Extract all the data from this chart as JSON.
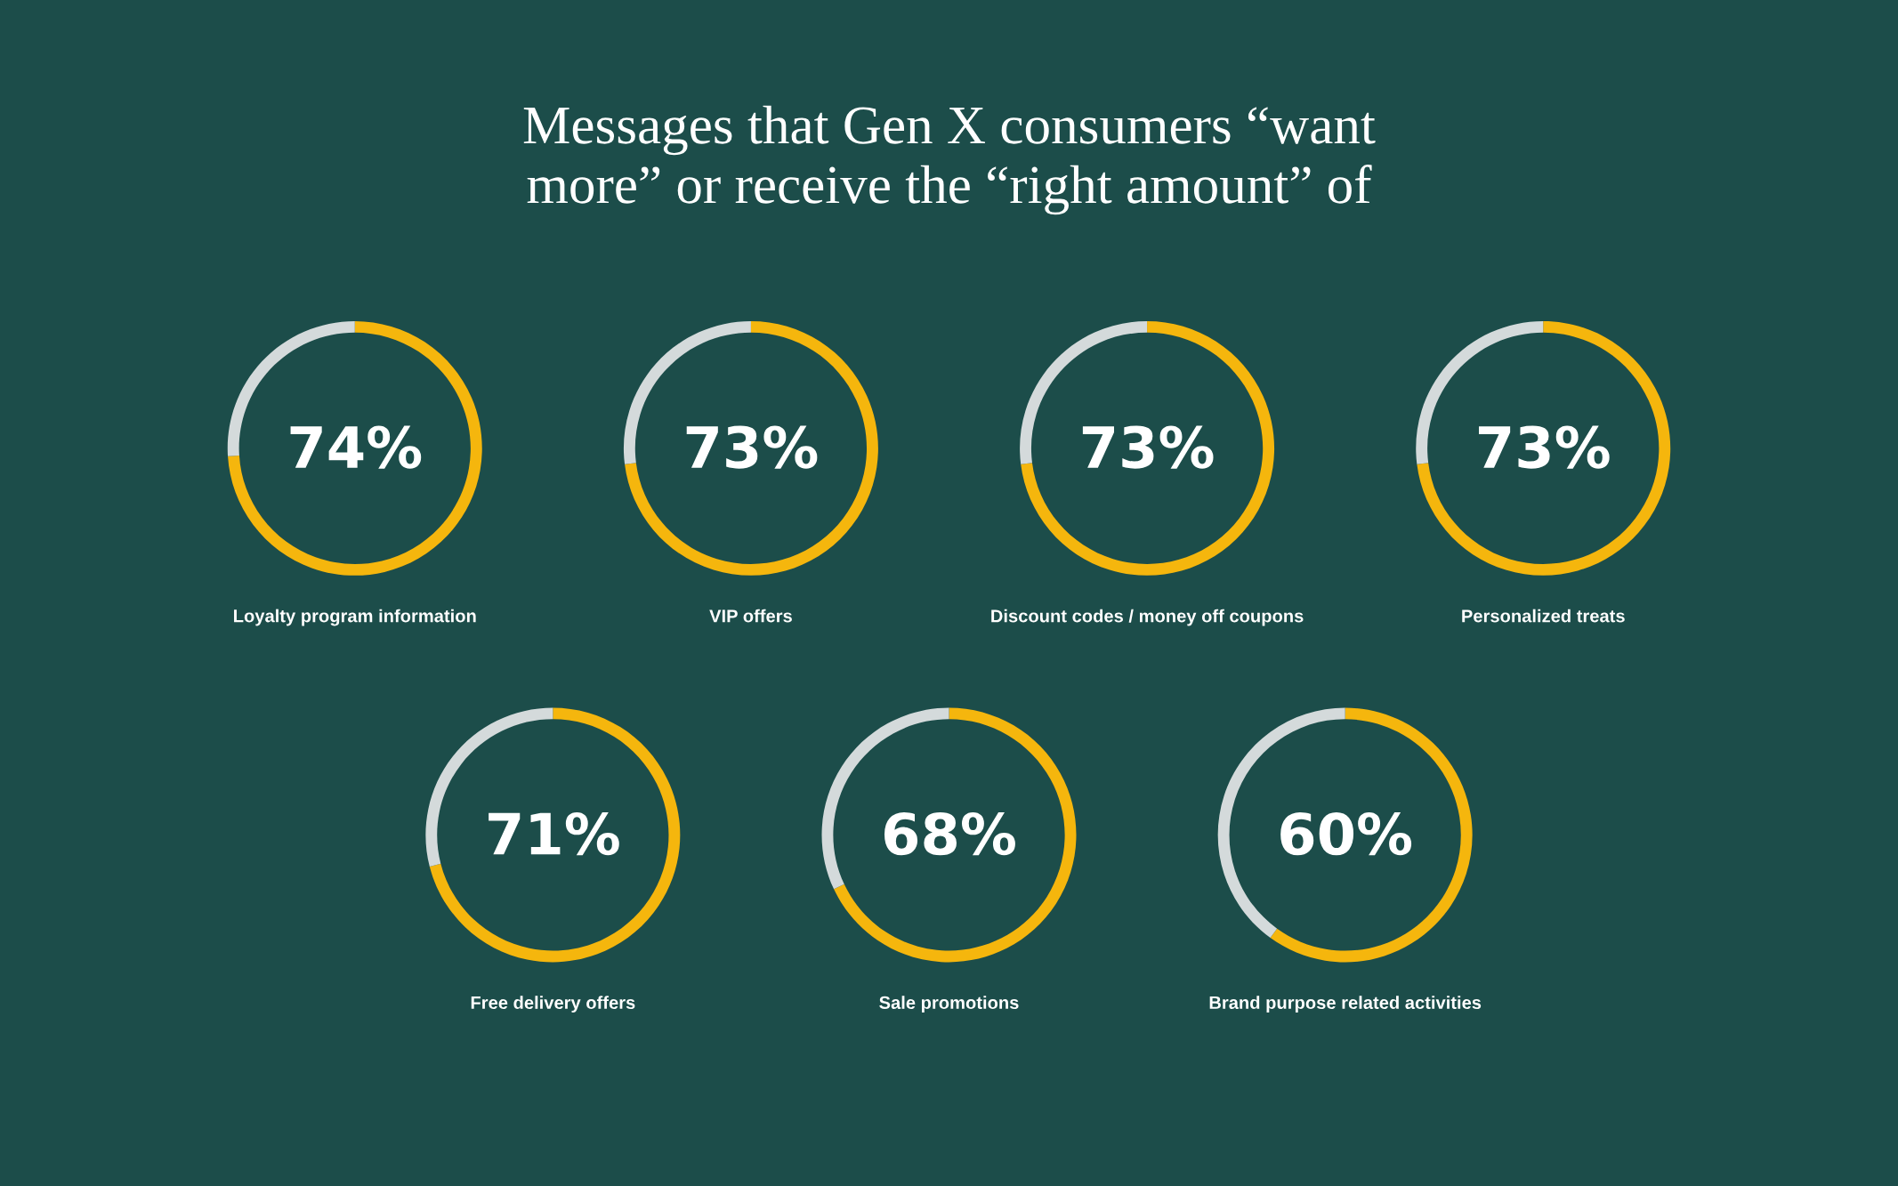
{
  "chart_data": [
    {
      "type": "other",
      "title": "Messages that Gen X consumers “want more” or receive the “right amount” of"
    },
    {
      "type": "donut",
      "xlabel": "Loyalty program information",
      "categories": [
        null,
        null
      ],
      "values": [
        74,
        26
      ],
      "colors": [
        "#f5b60d",
        "#d4dadb"
      ],
      "value_labels": [
        "74%",
        null
      ]
    },
    {
      "type": "donut",
      "xlabel": "VIP offers",
      "categories": [
        null,
        null
      ],
      "values": [
        73,
        27
      ],
      "colors": [
        "#f5b60d",
        "#d4dadb"
      ],
      "value_labels": [
        "73%",
        null
      ]
    },
    {
      "type": "donut",
      "xlabel": "Discount codes / money off coupons",
      "categories": [
        null,
        null
      ],
      "values": [
        73,
        27
      ],
      "colors": [
        "#f5b60d",
        "#d4dadb"
      ],
      "value_labels": [
        "73%",
        null
      ]
    },
    {
      "type": "donut",
      "xlabel": "Personalized treats",
      "categories": [
        null,
        null
      ],
      "values": [
        73,
        27
      ],
      "colors": [
        "#f5b60d",
        "#d4dadb"
      ],
      "value_labels": [
        "73%",
        null
      ]
    },
    {
      "type": "donut",
      "xlabel": "Free delivery offers",
      "categories": [
        null,
        null
      ],
      "values": [
        71,
        29
      ],
      "colors": [
        "#f5b60d",
        "#d4dadb"
      ],
      "value_labels": [
        "71%",
        null
      ]
    },
    {
      "type": "donut",
      "xlabel": "Sale promotions",
      "categories": [
        null,
        null
      ],
      "values": [
        68,
        32
      ],
      "colors": [
        "#f5b60d",
        "#d4dadb"
      ],
      "value_labels": [
        "68%",
        null
      ]
    },
    {
      "type": "donut",
      "xlabel": "Brand purpose related activities",
      "categories": [
        null,
        null
      ],
      "values": [
        60,
        40
      ],
      "colors": [
        "#f5b60d",
        "#d4dadb"
      ],
      "value_labels": [
        "60%",
        null
      ]
    }
  ]
}
